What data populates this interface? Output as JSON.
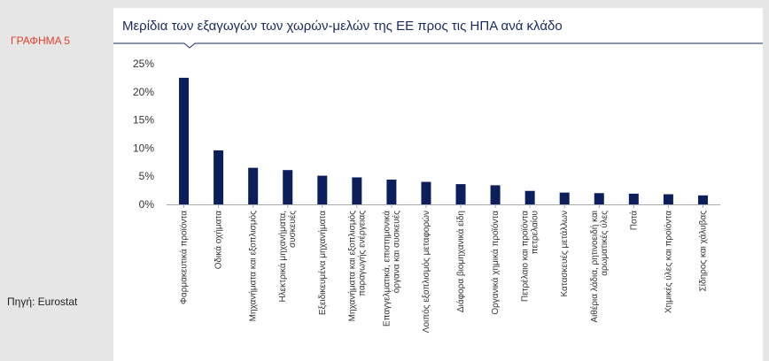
{
  "figure_label": "ΓΡΑΦΗΜΑ 5",
  "source": "Πηγή: Eurostat",
  "colors": {
    "bar": "#0c1f5c",
    "axis": "#aaaaaa",
    "label": "#e0402c",
    "title": "#1a2a5a"
  },
  "chart_data": {
    "type": "bar",
    "title": "Μερίδια των εξαγωγών των χωρών-μελών της ΕΕ προς τις ΗΠΑ ανά κλάδο",
    "xlabel": "",
    "ylabel": "",
    "ylim": [
      0,
      25
    ],
    "yticks": [
      "0%",
      "5%",
      "10%",
      "15%",
      "20%",
      "25%"
    ],
    "grid": false,
    "categories": [
      "Φαρμακευτικά προϊόντα",
      "Οδικά οχήματα",
      "Μηχανήματα και εξοπλισμός",
      "Ηλεκτρικά μηχανήματα, συσκευές",
      "Εξειδικευμένα μηχανήματα",
      "Μηχανήματα και εξοπλισμός παραγωγής ενέργειας",
      "Επαγγελματικά, επιστημονικά όργανα και συσκευές",
      "Λοιπός εξοπλισμός μεταφορών",
      "Διάφορα βιομηχανικά είδη",
      "Οργανικά χημικά προϊόντα",
      "Πετρέλαιο και προϊόντα πετρελαίου",
      "Κατασκευές μετάλλων",
      "Αιθέρια λάδια, ρητινοειδή και αρωματικές ύλες",
      "Ποτά",
      "Χημικές ύλες και προϊόντα",
      "Σίδηρος και χάλυβας"
    ],
    "category_lines": [
      [
        "Φαρμακευτικά προϊόντα"
      ],
      [
        "Οδικά οχήματα"
      ],
      [
        "Μηχανήματα και εξοπλισμός"
      ],
      [
        "Ηλεκτρικά μηχανήματα,",
        "συσκευές"
      ],
      [
        "Εξειδικευμένα μηχανήματα"
      ],
      [
        "Μηχανήματα και εξοπλισμός",
        "παραγωγής ενέργειας"
      ],
      [
        "Επαγγελματικά, επιστημονικά",
        "όργανα και συσκευές"
      ],
      [
        "Λοιπός εξοπλισμός μεταφορών"
      ],
      [
        "Διάφορα βιομηχανικά είδη"
      ],
      [
        "Οργανικά χημικά προϊόντα"
      ],
      [
        "Πετρέλαιο και προϊόντα",
        "πετρελαίου"
      ],
      [
        "Κατασκευές μετάλλων"
      ],
      [
        "Αιθέρια λάδια, ρητινοειδή και",
        "αρωματικές ύλες"
      ],
      [
        "Ποτά"
      ],
      [
        "Χημικές ύλες και προϊόντα"
      ],
      [
        "Σίδηρος και χάλυβας"
      ]
    ],
    "values": [
      22.5,
      9.6,
      6.5,
      6.1,
      5.1,
      4.8,
      4.4,
      4.0,
      3.6,
      3.4,
      2.4,
      2.1,
      2.0,
      1.9,
      1.8,
      1.6
    ]
  }
}
